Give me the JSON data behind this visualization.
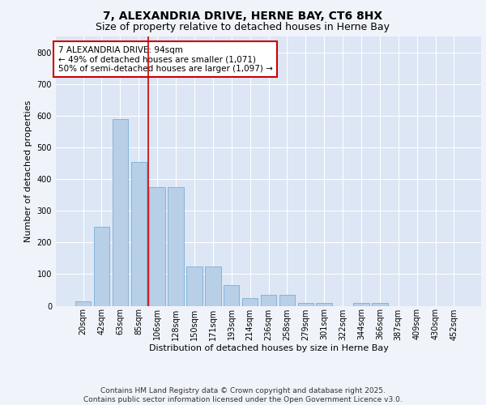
{
  "title_line1": "7, ALEXANDRIA DRIVE, HERNE BAY, CT6 8HX",
  "title_line2": "Size of property relative to detached houses in Herne Bay",
  "xlabel": "Distribution of detached houses by size in Herne Bay",
  "ylabel": "Number of detached properties",
  "categories": [
    "20sqm",
    "42sqm",
    "63sqm",
    "85sqm",
    "106sqm",
    "128sqm",
    "150sqm",
    "171sqm",
    "193sqm",
    "214sqm",
    "236sqm",
    "258sqm",
    "279sqm",
    "301sqm",
    "322sqm",
    "344sqm",
    "366sqm",
    "387sqm",
    "409sqm",
    "430sqm",
    "452sqm"
  ],
  "values": [
    15,
    248,
    590,
    455,
    375,
    375,
    125,
    125,
    65,
    25,
    35,
    35,
    10,
    10,
    0,
    8,
    8,
    0,
    0,
    0,
    0
  ],
  "bar_color": "#b8cfe8",
  "bar_edge_color": "#7aadd4",
  "background_color": "#dce6f5",
  "grid_color": "#ffffff",
  "vline_color": "#cc0000",
  "vline_pos": 3.5,
  "annotation_text": "7 ALEXANDRIA DRIVE: 94sqm\n← 49% of detached houses are smaller (1,071)\n50% of semi-detached houses are larger (1,097) →",
  "annotation_box_facecolor": "#ffffff",
  "annotation_box_edgecolor": "#cc0000",
  "ylim": [
    0,
    850
  ],
  "yticks": [
    0,
    100,
    200,
    300,
    400,
    500,
    600,
    700,
    800
  ],
  "footer_line1": "Contains HM Land Registry data © Crown copyright and database right 2025.",
  "footer_line2": "Contains public sector information licensed under the Open Government Licence v3.0.",
  "fig_facecolor": "#f0f4fa",
  "title_fontsize": 10,
  "subtitle_fontsize": 9,
  "axis_label_fontsize": 8,
  "tick_fontsize": 7,
  "annotation_fontsize": 7.5,
  "footer_fontsize": 6.5
}
